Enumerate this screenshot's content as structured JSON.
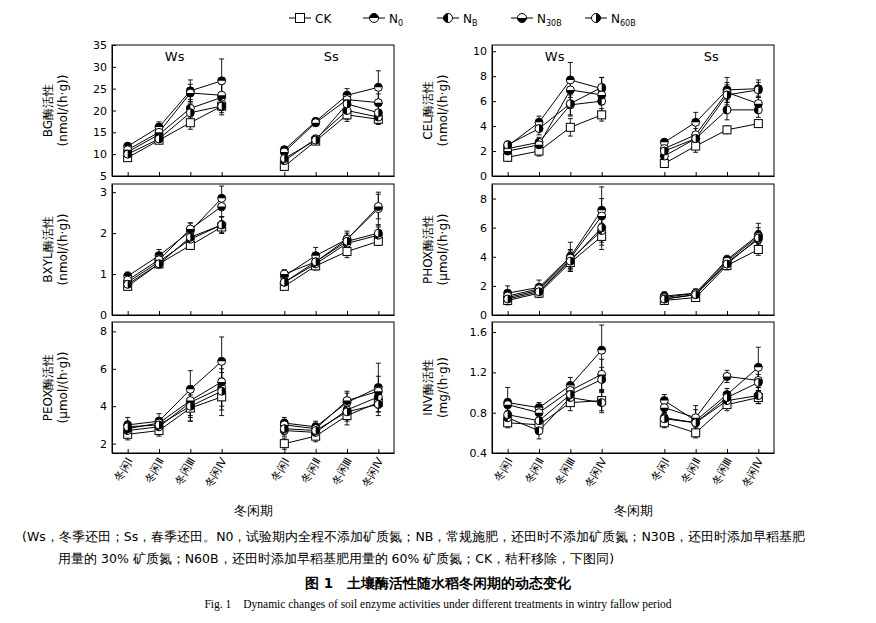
{
  "chart_data": [
    {
      "type": "line",
      "legend": "top",
      "tick_labels": "y",
      "annotations": [
        "Ws",
        "Ss"
      ],
      "y_label": [
        "BG酶活性",
        "(nmol/(h·g))"
      ],
      "categories": [
        "冬闲Ⅰ",
        "冬闲Ⅱ",
        "冬闲Ⅲ",
        "冬闲Ⅳ",
        null,
        "冬闲Ⅰ",
        "冬闲Ⅱ",
        "冬闲Ⅲ",
        "冬闲Ⅳ"
      ],
      "ylim": [
        5,
        35
      ],
      "yticks": [
        5,
        10,
        15,
        20,
        25,
        30,
        35
      ],
      "series": [
        {
          "name": "CK",
          "color": "#000000",
          "marker": "square",
          "values": [
            9.2,
            13.2,
            17.2,
            21.0,
            null,
            7.2,
            13.0,
            19.0,
            18.0
          ],
          "errors": [
            0.8,
            0.8,
            1.5,
            1.5,
            null,
            0.8,
            0.8,
            1.5,
            1.2
          ]
        },
        {
          "name": "N0",
          "color": "#000000",
          "marker": "circle-top",
          "values": [
            11.8,
            16.2,
            24.5,
            26.8,
            null,
            11.0,
            17.5,
            23.5,
            25.3
          ],
          "errors": [
            0.8,
            1.2,
            2.5,
            5.0,
            null,
            0.8,
            0.8,
            1.5,
            3.8
          ]
        },
        {
          "name": "NB",
          "color": "#000000",
          "marker": "circle-left",
          "values": [
            10.5,
            14.5,
            20.5,
            23.0,
            null,
            8.5,
            13.5,
            20.0,
            18.5
          ],
          "errors": [
            0.8,
            1.0,
            2.0,
            3.0,
            null,
            0.8,
            0.8,
            2.0,
            1.5
          ]
        },
        {
          "name": "N30B",
          "color": "#000000",
          "marker": "circle-bottom",
          "values": [
            11.0,
            15.0,
            24.0,
            23.5,
            null,
            10.5,
            17.2,
            22.5,
            21.8
          ],
          "errors": [
            0.8,
            1.2,
            2.0,
            3.0,
            null,
            0.8,
            0.8,
            1.5,
            2.0
          ]
        },
        {
          "name": "N60B",
          "color": "#000000",
          "marker": "circle-right",
          "values": [
            10.0,
            13.5,
            19.5,
            21.0,
            null,
            9.0,
            13.2,
            21.5,
            19.5
          ],
          "errors": [
            0.8,
            1.0,
            2.0,
            2.0,
            null,
            0.8,
            0.8,
            1.5,
            1.5
          ]
        }
      ]
    },
    {
      "type": "line",
      "tick_labels": "y",
      "annotations": [
        "Ws",
        "Ss"
      ],
      "y_label": [
        "CEL酶活性",
        "(nmol/(h·g))"
      ],
      "categories": [
        "冬闲Ⅰ",
        "冬闲Ⅱ",
        "冬闲Ⅲ",
        "冬闲Ⅳ",
        null,
        "冬闲Ⅰ",
        "冬闲Ⅱ",
        "冬闲Ⅲ",
        "冬闲Ⅳ"
      ],
      "ylim": [
        0,
        10.5
      ],
      "yticks": [
        0,
        2,
        4,
        6,
        8,
        10
      ],
      "series": [
        {
          "color": "#000000",
          "marker": "square",
          "values": [
            1.5,
            2.0,
            3.9,
            4.9,
            null,
            1.0,
            2.4,
            3.7,
            4.2
          ],
          "errors": [
            0.3,
            0.4,
            0.7,
            0.5,
            null,
            0.3,
            0.5,
            0.3,
            0.3
          ]
        },
        {
          "color": "#000000",
          "marker": "circle-top",
          "values": [
            2.4,
            4.3,
            7.7,
            7.0,
            null,
            2.7,
            4.3,
            6.9,
            7.0
          ],
          "errors": [
            0.3,
            0.5,
            1.4,
            0.9,
            null,
            0.3,
            0.8,
            1.0,
            0.7
          ]
        },
        {
          "color": "#000000",
          "marker": "circle-left",
          "values": [
            2.2,
            2.7,
            5.7,
            6.0,
            null,
            1.6,
            3.0,
            5.3,
            5.3
          ],
          "errors": [
            0.3,
            0.4,
            0.8,
            0.8,
            null,
            0.3,
            0.5,
            0.8,
            0.6
          ]
        },
        {
          "color": "#000000",
          "marker": "circle-bottom",
          "values": [
            2.0,
            2.5,
            6.9,
            6.5,
            null,
            2.2,
            3.3,
            6.7,
            5.8
          ],
          "errors": [
            0.3,
            0.4,
            1.0,
            0.8,
            null,
            0.3,
            0.5,
            0.8,
            0.6
          ]
        },
        {
          "color": "#000000",
          "marker": "circle-right",
          "values": [
            2.5,
            3.8,
            5.8,
            7.1,
            null,
            2.0,
            3.0,
            6.5,
            6.9
          ],
          "errors": [
            0.3,
            0.5,
            1.0,
            0.8,
            null,
            0.3,
            0.5,
            0.8,
            0.6
          ]
        }
      ]
    },
    {
      "type": "line",
      "tick_labels": "y",
      "y_label": [
        "BXYL酶活性",
        "(nmol/(h·g))"
      ],
      "categories": [
        "冬闲Ⅰ",
        "冬闲Ⅱ",
        "冬闲Ⅲ",
        "冬闲Ⅳ",
        null,
        "冬闲Ⅰ",
        "冬闲Ⅱ",
        "冬闲Ⅲ",
        "冬闲Ⅳ"
      ],
      "ylim": [
        0,
        3.2
      ],
      "yticks": [
        0,
        1,
        2,
        3
      ],
      "series": [
        {
          "color": "#000000",
          "marker": "square",
          "values": [
            0.7,
            1.25,
            1.7,
            2.15,
            null,
            0.7,
            1.2,
            1.55,
            1.8
          ],
          "errors": [
            0.08,
            0.1,
            0.1,
            0.15,
            null,
            0.08,
            0.1,
            0.15,
            0.1
          ]
        },
        {
          "color": "#000000",
          "marker": "circle-top",
          "values": [
            0.95,
            1.45,
            2.05,
            2.85,
            null,
            0.95,
            1.45,
            1.85,
            2.6
          ],
          "errors": [
            0.1,
            0.15,
            0.2,
            0.3,
            null,
            0.15,
            0.2,
            0.2,
            0.4
          ]
        },
        {
          "color": "#000000",
          "marker": "circle-left",
          "values": [
            0.8,
            1.3,
            1.85,
            2.2,
            null,
            0.8,
            1.25,
            1.75,
            1.95
          ],
          "errors": [
            0.08,
            0.1,
            0.15,
            0.2,
            null,
            0.1,
            0.1,
            0.15,
            0.2
          ]
        },
        {
          "color": "#000000",
          "marker": "circle-bottom",
          "values": [
            0.85,
            1.35,
            2.1,
            2.65,
            null,
            1.0,
            1.3,
            1.85,
            2.65
          ],
          "errors": [
            0.08,
            0.1,
            0.15,
            0.25,
            null,
            0.1,
            0.15,
            0.15,
            0.3
          ]
        },
        {
          "color": "#000000",
          "marker": "circle-right",
          "values": [
            0.75,
            1.25,
            1.9,
            2.2,
            null,
            0.8,
            1.3,
            1.8,
            2.0
          ],
          "errors": [
            0.08,
            0.1,
            0.15,
            0.2,
            null,
            0.1,
            0.1,
            0.15,
            0.2
          ]
        }
      ]
    },
    {
      "type": "line",
      "tick_labels": "y",
      "y_label": [
        "PHOX酶活性",
        "(μmol/(h·g))"
      ],
      "categories": [
        "冬闲Ⅰ",
        "冬闲Ⅱ",
        "冬闲Ⅲ",
        "冬闲Ⅳ",
        null,
        "冬闲Ⅰ",
        "冬闲Ⅱ",
        "冬闲Ⅲ",
        "冬闲Ⅳ"
      ],
      "ylim": [
        0,
        9
      ],
      "yticks": [
        0,
        2,
        4,
        6,
        8
      ],
      "series": [
        {
          "color": "#000000",
          "marker": "square",
          "values": [
            1.0,
            1.5,
            3.6,
            5.4,
            null,
            1.0,
            1.2,
            3.4,
            4.5
          ],
          "errors": [
            0.3,
            0.3,
            0.6,
            0.9,
            null,
            0.2,
            0.2,
            0.3,
            0.4
          ]
        },
        {
          "color": "#000000",
          "marker": "circle-top",
          "values": [
            1.5,
            1.9,
            4.0,
            7.2,
            null,
            1.3,
            1.5,
            3.8,
            5.5
          ],
          "errors": [
            0.5,
            0.5,
            1.0,
            1.6,
            null,
            0.3,
            0.3,
            0.3,
            0.8
          ]
        },
        {
          "color": "#000000",
          "marker": "circle-left",
          "values": [
            1.2,
            1.7,
            3.8,
            5.8,
            null,
            1.1,
            1.4,
            3.6,
            5.2
          ],
          "errors": [
            0.3,
            0.3,
            0.6,
            1.0,
            null,
            0.2,
            0.2,
            0.3,
            0.5
          ]
        },
        {
          "color": "#000000",
          "marker": "circle-bottom",
          "values": [
            1.3,
            1.8,
            3.9,
            6.8,
            null,
            1.2,
            1.5,
            3.7,
            5.4
          ],
          "errors": [
            0.3,
            0.3,
            0.6,
            1.2,
            null,
            0.2,
            0.2,
            0.3,
            0.6
          ]
        },
        {
          "color": "#000000",
          "marker": "circle-right",
          "values": [
            1.1,
            1.6,
            3.7,
            6.0,
            null,
            1.1,
            1.4,
            3.5,
            5.3
          ],
          "errors": [
            0.3,
            0.3,
            0.6,
            1.0,
            null,
            0.2,
            0.2,
            0.3,
            0.5
          ]
        }
      ]
    },
    {
      "type": "line",
      "y_label": [
        "PEOX酶活性",
        "(μmol/(h·g))"
      ],
      "x_label": "冬闲期",
      "categories": [
        "冬闲Ⅰ",
        "冬闲Ⅱ",
        "冬闲Ⅲ",
        "冬闲Ⅳ",
        null,
        "冬闲Ⅰ",
        "冬闲Ⅱ",
        "冬闲Ⅲ",
        "冬闲Ⅳ"
      ],
      "ylim": [
        1.5,
        8.5
      ],
      "yticks": [
        2,
        4,
        6,
        8
      ],
      "series": [
        {
          "color": "#000000",
          "marker": "square",
          "values": [
            2.5,
            2.7,
            3.9,
            4.5,
            null,
            2.0,
            2.4,
            3.5,
            4.2
          ],
          "errors": [
            0.3,
            0.3,
            0.7,
            1.0,
            null,
            0.3,
            0.3,
            0.5,
            0.5
          ]
        },
        {
          "color": "#000000",
          "marker": "circle-top",
          "values": [
            3.0,
            3.2,
            4.9,
            6.4,
            null,
            3.1,
            2.9,
            4.2,
            5.0
          ],
          "errors": [
            0.4,
            0.4,
            1.0,
            1.3,
            null,
            0.3,
            0.3,
            0.5,
            1.3
          ]
        },
        {
          "color": "#000000",
          "marker": "circle-left",
          "values": [
            2.7,
            2.9,
            4.2,
            5.0,
            null,
            2.7,
            2.6,
            3.8,
            4.5
          ],
          "errors": [
            0.3,
            0.3,
            0.8,
            1.0,
            null,
            0.3,
            0.3,
            0.5,
            0.6
          ]
        },
        {
          "color": "#000000",
          "marker": "circle-bottom",
          "values": [
            2.8,
            3.1,
            4.3,
            5.3,
            null,
            3.0,
            2.8,
            4.3,
            4.8
          ],
          "errors": [
            0.3,
            0.3,
            0.8,
            1.0,
            null,
            0.3,
            0.3,
            0.5,
            0.8
          ]
        },
        {
          "color": "#000000",
          "marker": "circle-right",
          "values": [
            2.9,
            3.0,
            4.0,
            4.8,
            null,
            2.8,
            2.7,
            3.7,
            4.1
          ],
          "errors": [
            0.3,
            0.3,
            0.8,
            1.0,
            null,
            0.3,
            0.3,
            0.5,
            0.6
          ]
        }
      ]
    },
    {
      "type": "line",
      "y_label": [
        "INV酶活性",
        "(mg/(h·g))"
      ],
      "x_label": "冬闲期",
      "categories": [
        "冬闲Ⅰ",
        "冬闲Ⅱ",
        "冬闲Ⅲ",
        "冬闲Ⅳ",
        null,
        "冬闲Ⅰ",
        "冬闲Ⅱ",
        "冬闲Ⅲ",
        "冬闲Ⅳ"
      ],
      "ylim": [
        0.4,
        1.7
      ],
      "yticks": [
        0.4,
        0.8,
        1.2,
        1.6
      ],
      "series": [
        {
          "color": "#000000",
          "marker": "square",
          "values": [
            0.7,
            0.68,
            0.9,
            0.92,
            null,
            0.7,
            0.6,
            0.88,
            0.95
          ],
          "errors": [
            0.05,
            0.05,
            0.08,
            0.1,
            null,
            0.05,
            0.05,
            0.06,
            0.06
          ]
        },
        {
          "color": "#000000",
          "marker": "circle-top",
          "values": [
            0.9,
            0.85,
            1.07,
            1.42,
            null,
            0.92,
            0.72,
            0.98,
            1.25
          ],
          "errors": [
            0.15,
            0.05,
            0.08,
            0.25,
            null,
            0.06,
            0.15,
            0.06,
            0.2
          ]
        },
        {
          "color": "#000000",
          "marker": "circle-left",
          "values": [
            0.75,
            0.62,
            0.95,
            0.9,
            null,
            0.75,
            0.7,
            0.92,
            0.97
          ],
          "errors": [
            0.06,
            0.08,
            0.08,
            0.1,
            null,
            0.05,
            0.08,
            0.06,
            0.08
          ]
        },
        {
          "color": "#000000",
          "marker": "circle-bottom",
          "values": [
            0.88,
            0.8,
            1.02,
            1.18,
            null,
            0.85,
            0.75,
            1.16,
            1.12
          ],
          "errors": [
            0.06,
            0.06,
            0.08,
            0.15,
            null,
            0.05,
            0.08,
            0.06,
            0.1
          ]
        },
        {
          "color": "#000000",
          "marker": "circle-right",
          "values": [
            0.78,
            0.72,
            0.98,
            1.13,
            null,
            0.74,
            0.7,
            0.95,
            1.1
          ],
          "errors": [
            0.06,
            0.06,
            0.08,
            0.12,
            null,
            0.05,
            0.08,
            0.06,
            0.08
          ]
        }
      ]
    }
  ],
  "caption": {
    "note": [
      "(Ws，冬季还田；Ss，春季还田。N0，试验期内全程不添加矿质氮；NB，常规施肥，还田时不添加矿质氮；N30B，还田时添加早稻基肥",
      "用量的 30% 矿质氮；N60B，还田时添加早稻基肥用量的 60% 矿质氮；CK，秸秆移除，下图同)"
    ],
    "title": "图 1　土壤酶活性随水稻冬闲期的动态变化",
    "title_en": "Fig. 1　Dynamic changes of soil enzyme activities under different treatments in wintry fallow period"
  }
}
